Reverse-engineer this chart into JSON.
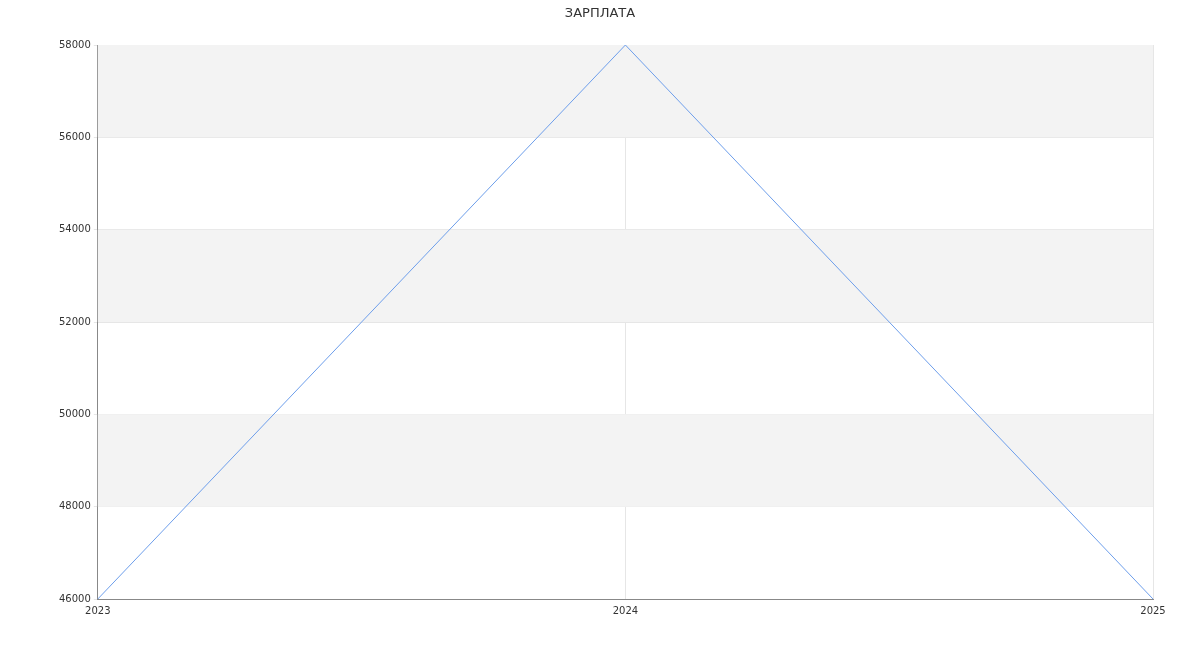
{
  "chart_data": {
    "type": "line",
    "title": "ЗАРПЛАТА",
    "categories": [
      "2023",
      "2024",
      "2025"
    ],
    "series": [
      {
        "color": "#6d9eeb",
        "values": [
          46000,
          58000,
          46000
        ]
      }
    ],
    "ylim": [
      46000,
      58000
    ],
    "yticks": [
      46000,
      48000,
      50000,
      52000,
      54000,
      56000,
      58000
    ],
    "grid": true,
    "legend": false,
    "marker": "none",
    "line_style": "solid"
  }
}
